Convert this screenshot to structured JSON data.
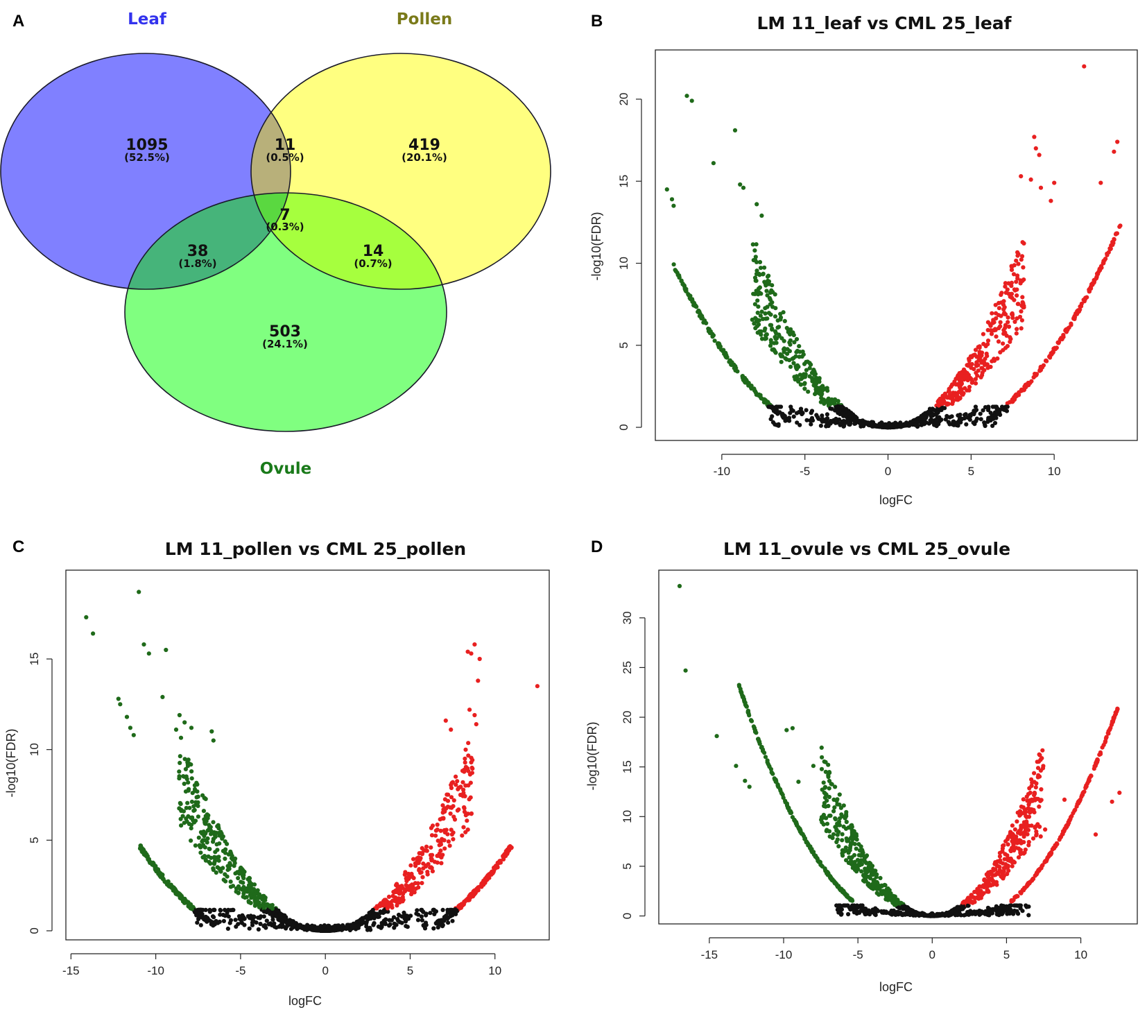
{
  "panels": {
    "a": "A",
    "b": "B",
    "c": "C",
    "d": "D"
  },
  "venn": {
    "sets": [
      {
        "name": "Leaf",
        "color": "#8080ff",
        "title_color": "#3333ee"
      },
      {
        "name": "Pollen",
        "color": "#ffff80",
        "title_color": "#7a7a1a"
      },
      {
        "name": "Ovule",
        "color": "#80ff80",
        "title_color": "#1a7a1a"
      }
    ],
    "regions": [
      {
        "key": "leaf_only",
        "count": "1095",
        "percent": "(52.5%)"
      },
      {
        "key": "leaf_pollen",
        "count": "11",
        "percent": "(0.5%)"
      },
      {
        "key": "pollen_only",
        "count": "419",
        "percent": "(20.1%)"
      },
      {
        "key": "all",
        "count": "7",
        "percent": "(0.3%)"
      },
      {
        "key": "leaf_ovule",
        "count": "38",
        "percent": "(1.8%)"
      },
      {
        "key": "pollen_ovule",
        "count": "14",
        "percent": "(0.7%)"
      },
      {
        "key": "ovule_only",
        "count": "503",
        "percent": "(24.1%)"
      }
    ],
    "overlap_colors": {
      "leaf_pollen": "#b8b07a",
      "leaf_ovule": "#46b47a",
      "pollen_ovule": "#a6ff3e",
      "all": "#5ad840"
    }
  },
  "chart_data": [
    {
      "panel": "B",
      "type": "scatter",
      "title": "LM 11_leaf vs CML 25_leaf",
      "xlabel": "logFC",
      "ylabel": "-log10(FDR)",
      "xlim": [
        -14,
        15
      ],
      "ylim": [
        -0.8,
        23
      ],
      "xticks": [
        -10,
        -5,
        0,
        5,
        10
      ],
      "yticks": [
        0,
        5,
        10,
        15,
        20
      ],
      "curves": {
        "outer_a": 0.103,
        "outer_x0": 6,
        "inner_a": 0.17,
        "inner_x0": 2.4,
        "xmin": -13,
        "xmax": 14,
        "cut": 1.3
      },
      "highlights": [
        {
          "x": -12.1,
          "y": 20.2,
          "dir": "down"
        },
        {
          "x": -11.8,
          "y": 19.9,
          "dir": "down"
        },
        {
          "x": -9.2,
          "y": 18.1,
          "dir": "down"
        },
        {
          "x": -10.5,
          "y": 16.1,
          "dir": "down"
        },
        {
          "x": -13.3,
          "y": 14.5,
          "dir": "down"
        },
        {
          "x": -8.9,
          "y": 14.8,
          "dir": "down"
        },
        {
          "x": -8.7,
          "y": 14.6,
          "dir": "down"
        },
        {
          "x": -13.0,
          "y": 13.9,
          "dir": "down"
        },
        {
          "x": -12.9,
          "y": 13.5,
          "dir": "down"
        },
        {
          "x": -7.9,
          "y": 13.6,
          "dir": "down"
        },
        {
          "x": -7.6,
          "y": 12.9,
          "dir": "down"
        },
        {
          "x": 11.8,
          "y": 22.0,
          "dir": "up"
        },
        {
          "x": 8.8,
          "y": 17.7,
          "dir": "up"
        },
        {
          "x": 13.8,
          "y": 17.4,
          "dir": "up"
        },
        {
          "x": 8.9,
          "y": 17.0,
          "dir": "up"
        },
        {
          "x": 13.6,
          "y": 16.8,
          "dir": "up"
        },
        {
          "x": 9.1,
          "y": 16.6,
          "dir": "up"
        },
        {
          "x": 8.0,
          "y": 15.3,
          "dir": "up"
        },
        {
          "x": 8.6,
          "y": 15.1,
          "dir": "up"
        },
        {
          "x": 10.0,
          "y": 14.9,
          "dir": "up"
        },
        {
          "x": 9.2,
          "y": 14.6,
          "dir": "up"
        },
        {
          "x": 12.8,
          "y": 14.9,
          "dir": "up"
        },
        {
          "x": 9.8,
          "y": 13.8,
          "dir": "up"
        }
      ]
    },
    {
      "panel": "C",
      "type": "scatter",
      "title": "LM 11_pollen vs CML 25_pollen",
      "xlabel": "logFC",
      "ylabel": "-log10(FDR)",
      "xlim": [
        -15.3,
        13.2
      ],
      "ylim": [
        -0.5,
        19.9
      ],
      "xticks": [
        -15,
        -10,
        -5,
        0,
        5,
        10
      ],
      "yticks": [
        0,
        5,
        10,
        15
      ],
      "curves": {
        "outer_a": 0.09,
        "outer_x0": 6.5,
        "inner_a": 0.14,
        "inner_x0": 2.5,
        "xmin": -11,
        "xmax": 11,
        "cut": 1.2
      },
      "highlights": [
        {
          "x": -11.0,
          "y": 18.7,
          "dir": "down"
        },
        {
          "x": -14.1,
          "y": 17.3,
          "dir": "down"
        },
        {
          "x": -13.7,
          "y": 16.4,
          "dir": "down"
        },
        {
          "x": -10.7,
          "y": 15.8,
          "dir": "down"
        },
        {
          "x": -10.4,
          "y": 15.3,
          "dir": "down"
        },
        {
          "x": -9.4,
          "y": 15.5,
          "dir": "down"
        },
        {
          "x": -12.2,
          "y": 12.8,
          "dir": "down"
        },
        {
          "x": -12.1,
          "y": 12.5,
          "dir": "down"
        },
        {
          "x": -9.6,
          "y": 12.9,
          "dir": "down"
        },
        {
          "x": -11.7,
          "y": 11.8,
          "dir": "down"
        },
        {
          "x": -11.5,
          "y": 11.2,
          "dir": "down"
        },
        {
          "x": -11.3,
          "y": 10.8,
          "dir": "down"
        },
        {
          "x": -8.6,
          "y": 11.9,
          "dir": "down"
        },
        {
          "x": -8.3,
          "y": 11.5,
          "dir": "down"
        },
        {
          "x": -8.8,
          "y": 11.1,
          "dir": "down"
        },
        {
          "x": -7.9,
          "y": 11.2,
          "dir": "down"
        },
        {
          "x": -6.7,
          "y": 11.0,
          "dir": "down"
        },
        {
          "x": -6.6,
          "y": 10.5,
          "dir": "down"
        },
        {
          "x": 8.8,
          "y": 15.8,
          "dir": "up"
        },
        {
          "x": 8.4,
          "y": 15.4,
          "dir": "up"
        },
        {
          "x": 8.6,
          "y": 15.3,
          "dir": "up"
        },
        {
          "x": 9.1,
          "y": 15.0,
          "dir": "up"
        },
        {
          "x": 9.0,
          "y": 13.8,
          "dir": "up"
        },
        {
          "x": 12.5,
          "y": 13.5,
          "dir": "up"
        },
        {
          "x": 8.5,
          "y": 12.2,
          "dir": "up"
        },
        {
          "x": 8.8,
          "y": 11.9,
          "dir": "up"
        },
        {
          "x": 7.1,
          "y": 11.6,
          "dir": "up"
        },
        {
          "x": 8.9,
          "y": 11.4,
          "dir": "up"
        },
        {
          "x": 7.4,
          "y": 11.1,
          "dir": "up"
        }
      ]
    },
    {
      "panel": "D",
      "type": "scatter",
      "title": "LM 11_ovule vs CML 25_ovule",
      "xlabel": "logFC",
      "ylabel": "-log10(FDR)",
      "xlim": [
        -18.4,
        13.8
      ],
      "ylim": [
        -0.8,
        34.8
      ],
      "xticks": [
        -15,
        -10,
        -5,
        0,
        5,
        10
      ],
      "yticks": [
        0,
        5,
        10,
        15,
        20,
        25,
        30
      ],
      "curves": {
        "outer_a": 0.2,
        "outer_x0": 5.3,
        "inner_a": 0.3,
        "inner_x0": 2.0,
        "xmin": -13,
        "xmax": 12.5,
        "cut": 1.1
      },
      "highlights": [
        {
          "x": -17.0,
          "y": 33.2,
          "dir": "down"
        },
        {
          "x": -16.6,
          "y": 24.7,
          "dir": "down"
        },
        {
          "x": -9.4,
          "y": 18.9,
          "dir": "down"
        },
        {
          "x": -9.8,
          "y": 18.7,
          "dir": "down"
        },
        {
          "x": -14.5,
          "y": 18.1,
          "dir": "down"
        },
        {
          "x": -13.2,
          "y": 15.1,
          "dir": "down"
        },
        {
          "x": -8.0,
          "y": 15.1,
          "dir": "down"
        },
        {
          "x": -12.6,
          "y": 13.6,
          "dir": "down"
        },
        {
          "x": -12.3,
          "y": 13.0,
          "dir": "down"
        },
        {
          "x": -9.0,
          "y": 13.5,
          "dir": "down"
        },
        {
          "x": 12.6,
          "y": 12.4,
          "dir": "up"
        },
        {
          "x": 12.1,
          "y": 11.5,
          "dir": "up"
        },
        {
          "x": 6.6,
          "y": 12.4,
          "dir": "up"
        },
        {
          "x": 6.9,
          "y": 12.3,
          "dir": "up"
        },
        {
          "x": 6.4,
          "y": 11.6,
          "dir": "up"
        },
        {
          "x": 8.9,
          "y": 11.7,
          "dir": "up"
        },
        {
          "x": 6.0,
          "y": 11.0,
          "dir": "up"
        },
        {
          "x": 11.0,
          "y": 8.2,
          "dir": "up"
        },
        {
          "x": 7.6,
          "y": 8.7,
          "dir": "up"
        },
        {
          "x": 7.0,
          "y": 8.5,
          "dir": "up"
        },
        {
          "x": 7.3,
          "y": 8.0,
          "dir": "up"
        },
        {
          "x": 6.8,
          "y": 7.8,
          "dir": "up"
        }
      ]
    }
  ],
  "colors": {
    "down": "#1f6a1a",
    "up": "#e82020",
    "ns": "#111111"
  }
}
